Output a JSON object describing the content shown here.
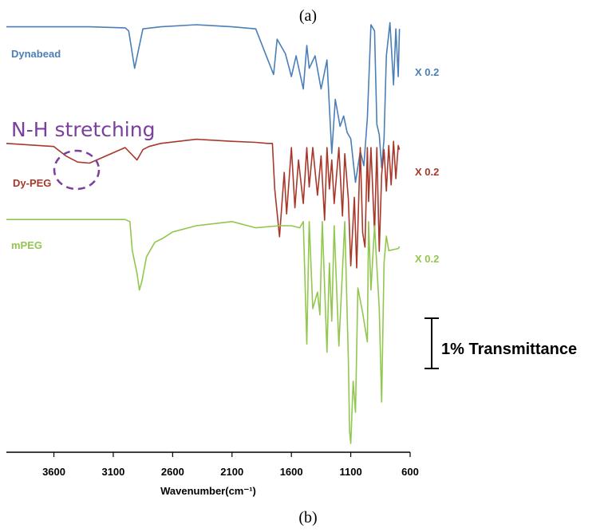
{
  "labels": {
    "panel_top": "(a)",
    "panel_bottom": "(b)"
  },
  "colors": {
    "dynabead": "#4a7fb8",
    "dypeg": "#a8382a",
    "mpeg": "#92c74f",
    "annotation": "#7b3f9e",
    "axis": "#000000"
  },
  "chart_data": {
    "type": "line",
    "xlabel": "Wavenumber(cm⁻¹)",
    "ylabel": "",
    "xlim": [
      4000,
      600
    ],
    "x_reversed": true,
    "x_ticks": [
      3600,
      3100,
      2600,
      2100,
      1600,
      1100,
      600
    ],
    "y_ticks_shown": false,
    "series": [
      {
        "name": "Dynabead",
        "scale_label": "X 0.2",
        "color": "#4a7fb8",
        "x": [
          4000,
          3700,
          3300,
          3000,
          2970,
          2920,
          2850,
          2700,
          2400,
          2100,
          1900,
          1750,
          1720,
          1650,
          1600,
          1560,
          1500,
          1470,
          1450,
          1400,
          1350,
          1300,
          1260,
          1230,
          1190,
          1160,
          1130,
          1100,
          1060,
          1020,
          990,
          960,
          930,
          900,
          880,
          860,
          840,
          820,
          800,
          770,
          740,
          720,
          700,
          690
        ],
        "y": [
          0.4,
          0.4,
          0.4,
          0.35,
          0.2,
          -1.6,
          0.3,
          0.4,
          0.5,
          0.4,
          0.3,
          -1.9,
          -0.2,
          -0.9,
          -2.0,
          -1.0,
          -2.6,
          -0.5,
          -1.6,
          -1.0,
          -2.6,
          -1.2,
          -5.7,
          -3.1,
          -4.4,
          -3.9,
          -4.7,
          -5.0,
          -7.1,
          -5.6,
          -6.3,
          -4.0,
          0.5,
          0.2,
          -4.3,
          -4.8,
          -6.4,
          -5.0,
          -1.0,
          0.6,
          -2.4,
          0.3,
          -2.0,
          0.3
        ]
      },
      {
        "name": "Dy-PEG",
        "scale_label": "X 0.2",
        "color": "#a8382a",
        "x": [
          4000,
          3600,
          3500,
          3400,
          3300,
          3200,
          3000,
          2900,
          2850,
          2800,
          2700,
          2400,
          2100,
          1900,
          1800,
          1760,
          1740,
          1700,
          1660,
          1640,
          1600,
          1570,
          1540,
          1500,
          1470,
          1450,
          1420,
          1380,
          1350,
          1320,
          1300,
          1280,
          1260,
          1240,
          1200,
          1170,
          1150,
          1120,
          1100,
          1070,
          1050,
          1020,
          1000,
          980,
          960,
          950,
          930,
          900,
          880,
          860,
          840,
          820,
          800,
          780,
          760,
          740,
          720,
          700,
          690
        ],
        "y": [
          0.2,
          0.05,
          -0.4,
          -0.7,
          -0.75,
          -0.5,
          0.0,
          -0.6,
          -0.1,
          0.05,
          0.2,
          0.4,
          0.3,
          0.25,
          0.2,
          0.2,
          -2.0,
          -4.3,
          -1.2,
          -3.2,
          0.0,
          -2.9,
          -0.6,
          -2.7,
          0.0,
          -1.9,
          0.0,
          -2.3,
          -0.4,
          -3.5,
          0.0,
          -2.0,
          -0.6,
          -2.7,
          0.0,
          -3.3,
          -0.3,
          -2.5,
          -5.7,
          -2.4,
          -5.8,
          0.0,
          -4.1,
          -4.8,
          0.0,
          -2.6,
          0.0,
          -4.1,
          0.0,
          -5.0,
          -1.3,
          -0.1,
          -2.1,
          0.1,
          -1.8,
          0.3,
          -1.5,
          0.1,
          -0.1
        ]
      },
      {
        "name": "mPEG",
        "scale_label": "X 0.2",
        "color": "#92c74f",
        "x": [
          4000,
          3700,
          3300,
          3000,
          2960,
          2940,
          2900,
          2880,
          2860,
          2820,
          2750,
          2680,
          2600,
          2400,
          2100,
          1900,
          1700,
          1600,
          1530,
          1500,
          1470,
          1450,
          1420,
          1380,
          1360,
          1340,
          1300,
          1280,
          1260,
          1240,
          1200,
          1150,
          1120,
          1110,
          1100,
          1080,
          1060,
          1040,
          1000,
          960,
          950,
          930,
          900,
          860,
          840,
          820,
          800,
          780,
          700,
          690
        ],
        "y": [
          0.3,
          0.3,
          0.3,
          0.3,
          0.2,
          -1.2,
          -2.3,
          -3.1,
          -2.7,
          -1.5,
          -0.8,
          -0.6,
          -0.3,
          0.0,
          0.2,
          -0.1,
          0.0,
          0.0,
          -0.1,
          0.2,
          -5.7,
          0.2,
          -4.0,
          -3.2,
          -4.3,
          0.2,
          -6.1,
          -1.8,
          -4.6,
          0.0,
          -5.8,
          0.2,
          -6.5,
          -9.9,
          -10.5,
          -7.5,
          -9.0,
          -3.0,
          -4.2,
          -5.6,
          0.2,
          -3.1,
          0.0,
          -4.0,
          -8.5,
          -1.8,
          -0.5,
          -1.2,
          -1.1,
          -1.0
        ]
      }
    ],
    "annotations": [
      {
        "text": "N-H stretching",
        "x": 3400
      }
    ],
    "scale_bar": {
      "label": "1% Transmittance",
      "value": 1
    }
  }
}
